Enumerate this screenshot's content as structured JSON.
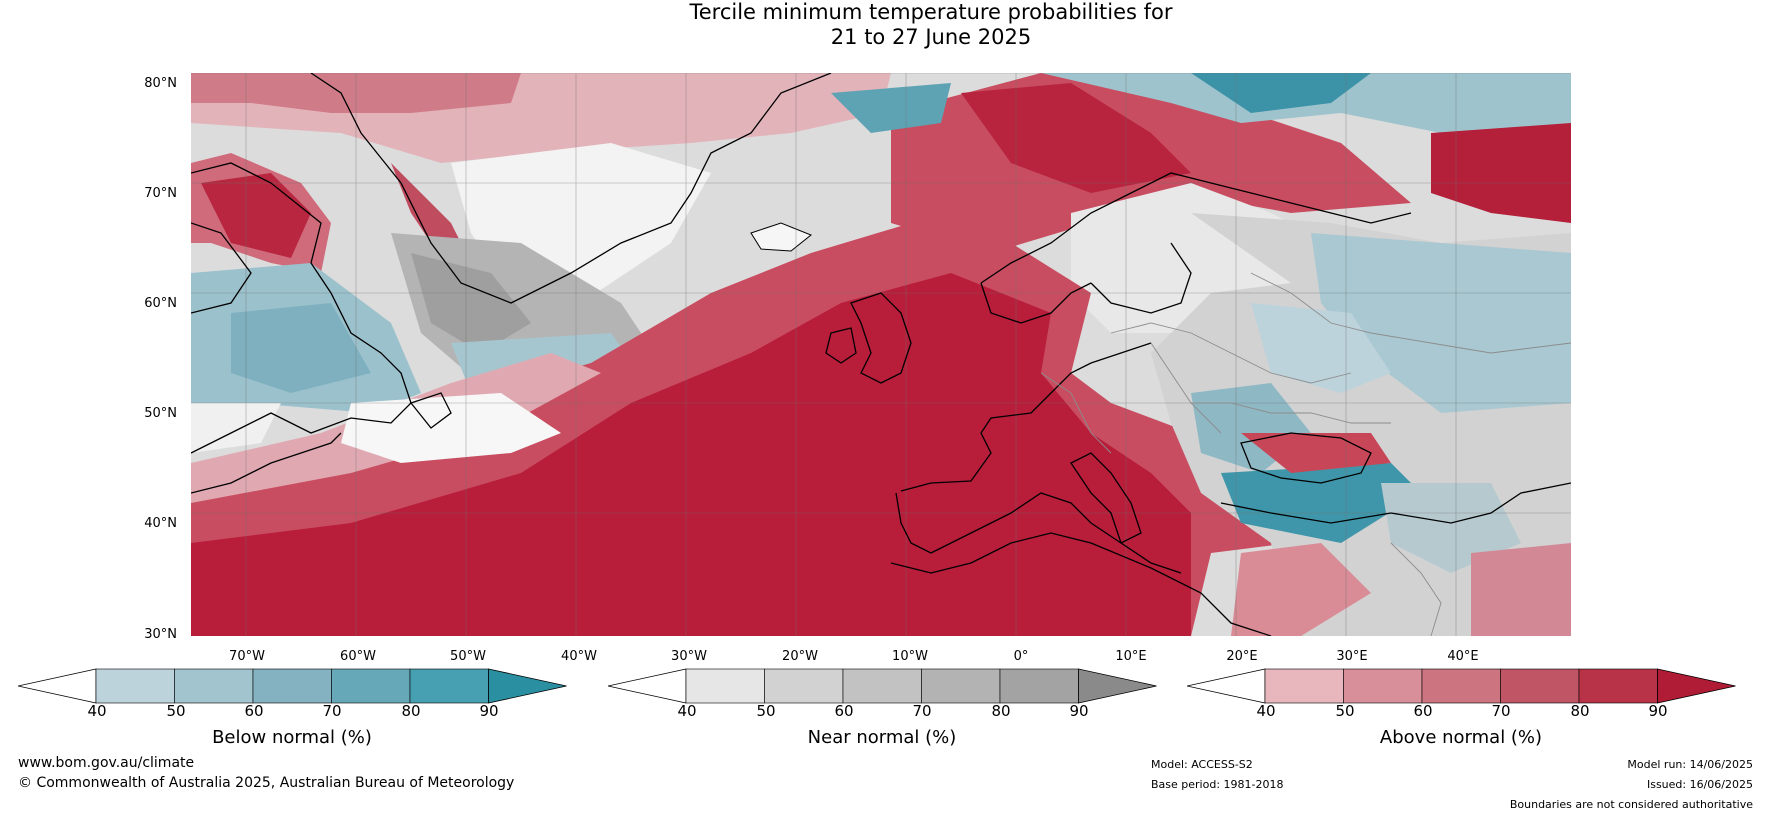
{
  "title_line1": "Tercile minimum temperature probabilities for",
  "title_line2": "21 to 27 June 2025",
  "lat_labels": [
    "80°N",
    "70°N",
    "60°N",
    "50°N",
    "40°N",
    "30°N"
  ],
  "lon_labels": [
    "70°W",
    "60°W",
    "50°W",
    "40°W",
    "30°W",
    "20°W",
    "10°W",
    "0°",
    "10°E",
    "20°E",
    "30°E",
    "40°E"
  ],
  "colorbars": [
    {
      "label": "Below normal (%)",
      "ticks": [
        "40",
        "50",
        "60",
        "70",
        "80",
        "90"
      ],
      "colors": [
        "#ffffff",
        "#bcd3db",
        "#a2c4ce",
        "#84b2c1",
        "#66a8b8",
        "#47a0b1",
        "#2a8fa1"
      ]
    },
    {
      "label": "Near normal (%)",
      "ticks": [
        "40",
        "50",
        "60",
        "70",
        "80",
        "90"
      ],
      "colors": [
        "#ffffff",
        "#e6e6e6",
        "#d2d2d2",
        "#c2c2c2",
        "#b3b3b3",
        "#a3a3a3",
        "#8a8a8a"
      ]
    },
    {
      "label": "Above normal (%)",
      "ticks": [
        "40",
        "50",
        "60",
        "70",
        "80",
        "90"
      ],
      "colors": [
        "#ffffff",
        "#e7b7bd",
        "#d98f99",
        "#cc7480",
        "#c05566",
        "#b83347",
        "#b01c36"
      ]
    }
  ],
  "footer": {
    "site": "www.bom.gov.au/climate",
    "copyright": "© Commonwealth of Australia 2025, Australian Bureau of Meteorology",
    "model": "Model: ACCESS-S2",
    "base_period": "Base period: 1981-2018",
    "model_run": "Model run: 14/06/2025",
    "issued": "Issued: 16/06/2025",
    "disclaimer": "Boundaries are not considered authoritative"
  }
}
